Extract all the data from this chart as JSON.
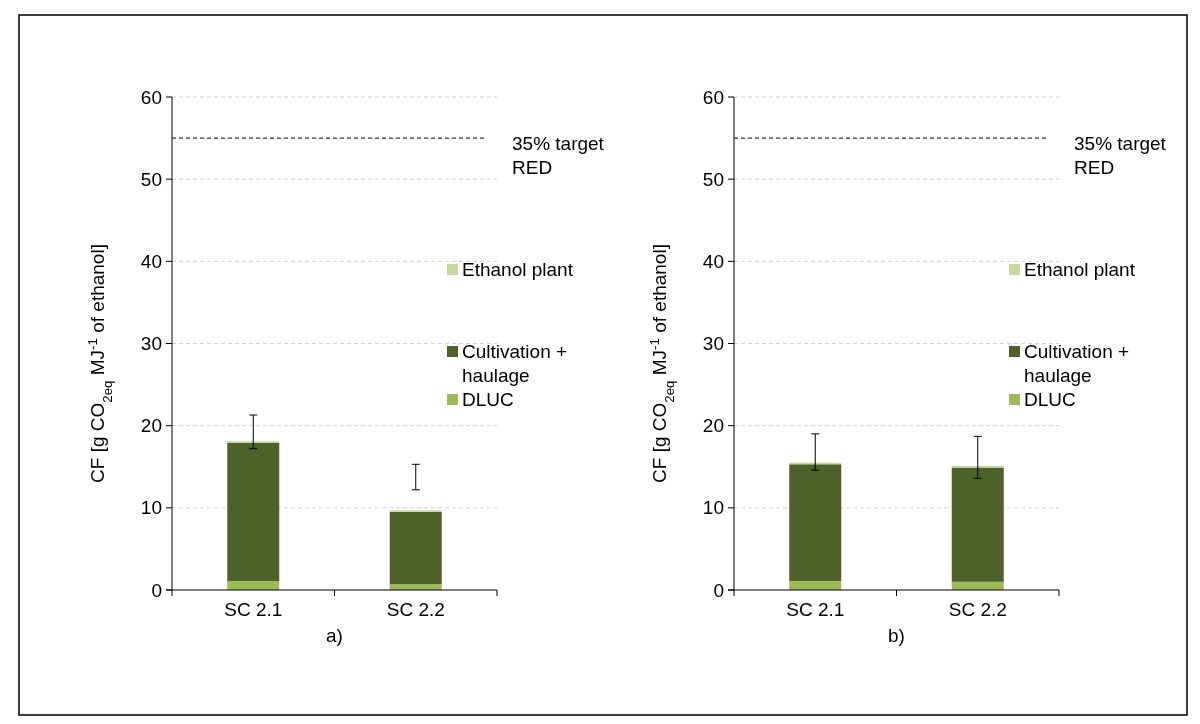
{
  "chart_data": [
    {
      "type": "bar",
      "stacked": true,
      "categories": [
        "SC 2.1",
        "SC 2.2"
      ],
      "xlabel": "a)",
      "ylabel": "CF [g CO$_{2eq}$  MJ$^{-1}$ of ethanol]",
      "ylim": [
        0,
        60
      ],
      "yticks": [
        0,
        10,
        20,
        30,
        40,
        50,
        60
      ],
      "grid": "y",
      "legend": "right",
      "series": [
        {
          "name": "DLUC",
          "color": "#9bbb59",
          "values": [
            1.1,
            0.7
          ]
        },
        {
          "name": "Cultivation + haulage",
          "color": "#4f612a",
          "values": [
            16.8,
            8.8
          ]
        },
        {
          "name": "Ethanol plant",
          "color": "#c4d9a0",
          "values": [
            0.2,
            0.2
          ],
          "errors": [
            [
              17.2,
              21.3
            ],
            [
              12.2,
              15.3
            ]
          ]
        }
      ],
      "ref_lines": [
        {
          "axis": "y",
          "value": 55,
          "label": "35% target RED",
          "line_style": "dashed",
          "color": "#000000"
        }
      ]
    },
    {
      "type": "bar",
      "stacked": true,
      "categories": [
        "SC 2.1",
        "SC 2.2"
      ],
      "xlabel": "b)",
      "ylabel": "CF [g CO$_{2eq}$  MJ$^{-1}$ of ethanol]",
      "ylim": [
        0,
        60
      ],
      "yticks": [
        0,
        10,
        20,
        30,
        40,
        50,
        60
      ],
      "grid": "y",
      "legend": "right",
      "series": [
        {
          "name": "DLUC",
          "color": "#9bbb59",
          "values": [
            1.1,
            1.0
          ]
        },
        {
          "name": "Cultivation + haulage",
          "color": "#4f612a",
          "values": [
            14.2,
            13.9
          ]
        },
        {
          "name": "Ethanol plant",
          "color": "#c4d9a0",
          "values": [
            0.2,
            0.2
          ],
          "errors": [
            [
              14.6,
              19.0
            ],
            [
              13.6,
              18.7
            ]
          ]
        }
      ],
      "ref_lines": [
        {
          "axis": "y",
          "value": 55,
          "label": "35% target RED",
          "line_style": "dashed",
          "color": "#000000"
        }
      ]
    }
  ]
}
